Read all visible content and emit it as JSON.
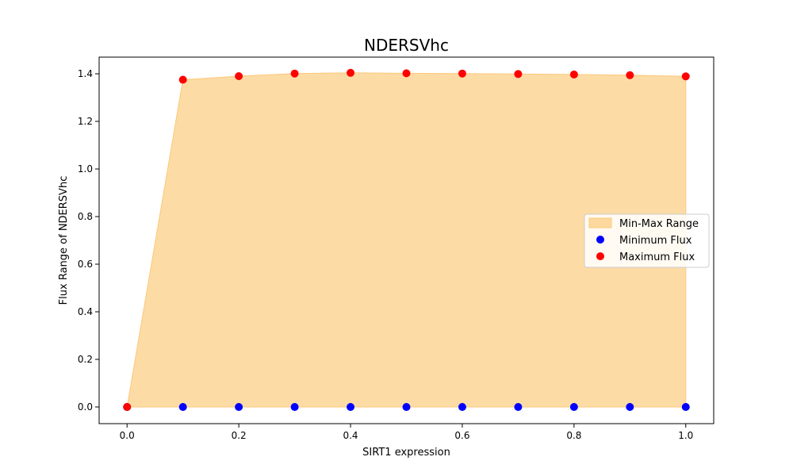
{
  "chart_data": {
    "type": "scatter",
    "title": "NDERSVhc",
    "xlabel": "SIRT1 expression",
    "ylabel": "Flux Range of NDERSVhc",
    "xlim": [
      -0.05,
      1.05
    ],
    "ylim": [
      -0.07,
      1.47
    ],
    "x_ticks": [
      "0.0",
      "0.2",
      "0.4",
      "0.6",
      "0.8",
      "1.0"
    ],
    "y_ticks": [
      "0.0",
      "0.2",
      "0.4",
      "0.6",
      "0.8",
      "1.0",
      "1.2",
      "1.4"
    ],
    "x": [
      0.0,
      0.1,
      0.2,
      0.3,
      0.4,
      0.5,
      0.6,
      0.7,
      0.8,
      0.9,
      1.0
    ],
    "series": [
      {
        "name": "Min-Max Range",
        "kind": "fill_between",
        "color": "#fdd9a0"
      },
      {
        "name": "Minimum Flux",
        "kind": "scatter",
        "color": "#0000ff",
        "values": [
          0.0,
          0.0,
          0.0,
          0.0,
          0.0,
          0.0,
          0.0,
          0.0,
          0.0,
          0.0,
          0.0
        ]
      },
      {
        "name": "Maximum Flux",
        "kind": "scatter",
        "color": "#ff0000",
        "values": [
          0.0,
          1.375,
          1.39,
          1.401,
          1.404,
          1.402,
          1.401,
          1.399,
          1.397,
          1.394,
          1.389
        ]
      }
    ],
    "grid": false,
    "legend_position": "center-right"
  }
}
